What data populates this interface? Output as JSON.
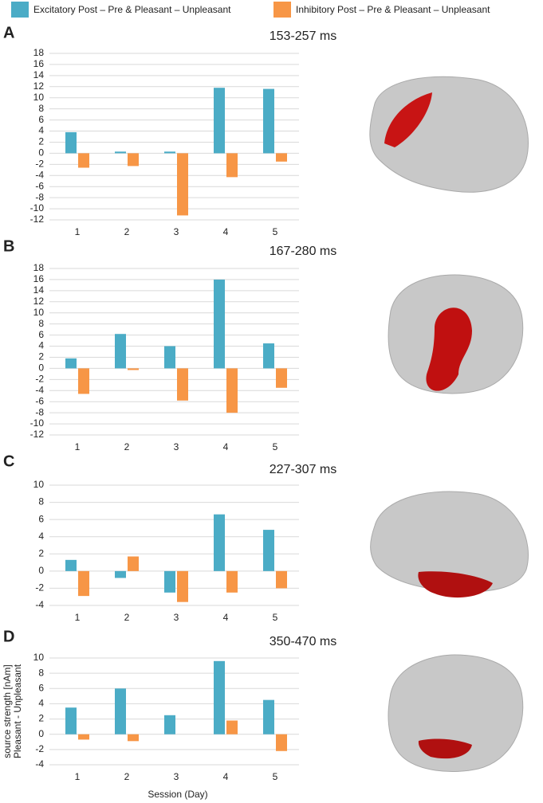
{
  "chart_data": [
    {
      "type": "bar",
      "panel": "A",
      "title": "153-257 ms",
      "categories": [
        "1",
        "2",
        "3",
        "4",
        "5"
      ],
      "series": [
        {
          "name": "Excitatory Post – Pre & Pleasant – Unpleasant",
          "color": "#4bacc6",
          "values": [
            3.8,
            0.3,
            0.3,
            11.8,
            11.6
          ]
        },
        {
          "name": "Inhibitory Post – Pre & Pleasant – Unpleasant",
          "color": "#f79646",
          "values": [
            -2.6,
            -2.3,
            -11.2,
            -4.3,
            -1.5
          ]
        }
      ],
      "ylim": [
        -12,
        18
      ],
      "yticks": [
        -12,
        -10,
        -8,
        -6,
        -4,
        -2,
        0,
        2,
        4,
        6,
        8,
        10,
        12,
        14,
        16,
        18
      ],
      "grid": true
    },
    {
      "type": "bar",
      "panel": "B",
      "title": "167-280 ms",
      "categories": [
        "1",
        "2",
        "3",
        "4",
        "5"
      ],
      "series": [
        {
          "color": "#4bacc6",
          "values": [
            1.8,
            6.2,
            4.0,
            16.0,
            4.5
          ]
        },
        {
          "color": "#f79646",
          "values": [
            -4.6,
            -0.3,
            -5.8,
            -8.0,
            -3.5
          ]
        }
      ],
      "ylim": [
        -12,
        18
      ],
      "yticks": [
        -12,
        -10,
        -8,
        -6,
        -4,
        -2,
        0,
        2,
        4,
        6,
        8,
        10,
        12,
        14,
        16,
        18
      ],
      "grid": true
    },
    {
      "type": "bar",
      "panel": "C",
      "title": "227-307 ms",
      "categories": [
        "1",
        "2",
        "3",
        "4",
        "5"
      ],
      "series": [
        {
          "color": "#4bacc6",
          "values": [
            1.3,
            -0.8,
            -2.5,
            6.6,
            4.8
          ]
        },
        {
          "color": "#f79646",
          "values": [
            -2.9,
            1.7,
            -3.6,
            -2.5,
            -2.0
          ]
        }
      ],
      "ylim": [
        -4,
        10
      ],
      "yticks": [
        -4,
        -2,
        0,
        2,
        4,
        6,
        8,
        10
      ],
      "grid": true
    },
    {
      "type": "bar",
      "panel": "D",
      "title": "350-470 ms",
      "categories": [
        "1",
        "2",
        "3",
        "4",
        "5"
      ],
      "series": [
        {
          "color": "#4bacc6",
          "values": [
            3.5,
            6.0,
            2.5,
            9.6,
            4.5
          ]
        },
        {
          "color": "#f79646",
          "values": [
            -0.7,
            -0.9,
            0,
            1.8,
            -2.2
          ]
        }
      ],
      "ylim": [
        -4,
        10
      ],
      "yticks": [
        -4,
        -2,
        0,
        2,
        4,
        6,
        8,
        10
      ],
      "grid": true,
      "ylabel": [
        "source strength [nAm]",
        "Pleasant - Unpleasant"
      ],
      "xlabel": "Session (Day)"
    }
  ]
}
